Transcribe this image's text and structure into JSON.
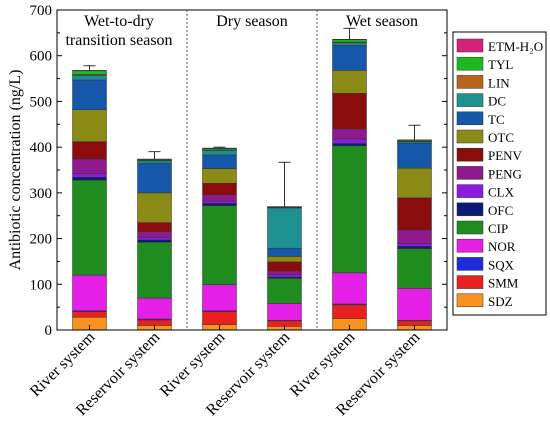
{
  "chart_data": {
    "type": "bar",
    "stacked": true,
    "ylabel": "Antibiotic concentration (ng/L)",
    "xlabel": "",
    "ylim": [
      0,
      700
    ],
    "yticks": [
      0,
      100,
      200,
      300,
      400,
      500,
      600,
      700
    ],
    "grid": false,
    "legend_position": "right",
    "categories": [
      "River system",
      "Reservoir system",
      "River system",
      "Reservoir system",
      "River system",
      "Reservoir system"
    ],
    "groups": [
      {
        "label": "Wet-to-dry\ntransition season",
        "categories": [
          0,
          1
        ]
      },
      {
        "label": "Dry season",
        "categories": [
          2,
          3
        ]
      },
      {
        "label": "Wet season",
        "categories": [
          4,
          5
        ]
      }
    ],
    "series": [
      {
        "name": "SDZ",
        "color": "#F7931E",
        "values": [
          28,
          10,
          12,
          8,
          25,
          10
        ]
      },
      {
        "name": "SMM",
        "color": "#E8201E",
        "values": [
          12,
          12,
          28,
          12,
          30,
          10
        ]
      },
      {
        "name": "SQX",
        "color": "#1F2BD8",
        "values": [
          2,
          2,
          2,
          1,
          2,
          1
        ]
      },
      {
        "name": "NOR",
        "color": "#E51FE5",
        "values": [
          78,
          46,
          57,
          37,
          68,
          70
        ]
      },
      {
        "name": "CIP",
        "color": "#1E8C1E",
        "values": [
          208,
          122,
          173,
          55,
          278,
          87
        ]
      },
      {
        "name": "OFC",
        "color": "#0A1B7A",
        "values": [
          6,
          5,
          5,
          3,
          5,
          5
        ]
      },
      {
        "name": "CLX",
        "color": "#8B1BE0",
        "values": [
          8,
          6,
          5,
          5,
          10,
          6
        ]
      },
      {
        "name": "PENG",
        "color": "#8E1A8E",
        "values": [
          32,
          12,
          14,
          8,
          22,
          30
        ]
      },
      {
        "name": "PENV",
        "color": "#8A0C0C",
        "values": [
          38,
          20,
          25,
          20,
          78,
          70
        ]
      },
      {
        "name": "OTC",
        "color": "#8A8A14",
        "values": [
          70,
          65,
          32,
          12,
          50,
          65
        ]
      },
      {
        "name": "TC",
        "color": "#1557A8",
        "values": [
          65,
          65,
          30,
          18,
          55,
          55
        ]
      },
      {
        "name": "DC",
        "color": "#1E9090",
        "values": [
          10,
          5,
          10,
          88,
          5,
          3
        ]
      },
      {
        "name": "LIN",
        "color": "#B8651B",
        "values": [
          2,
          1,
          1,
          1,
          2,
          1
        ]
      },
      {
        "name": "TYL",
        "color": "#1FB81F",
        "values": [
          8,
          2,
          3,
          1,
          5,
          2
        ]
      },
      {
        "name": "ETM-H₂O",
        "color": "#D6217A",
        "values": [
          1,
          1,
          1,
          1,
          1,
          1
        ]
      }
    ],
    "error_top_upper": [
      578,
      390,
      400,
      367,
      660,
      448
    ]
  }
}
